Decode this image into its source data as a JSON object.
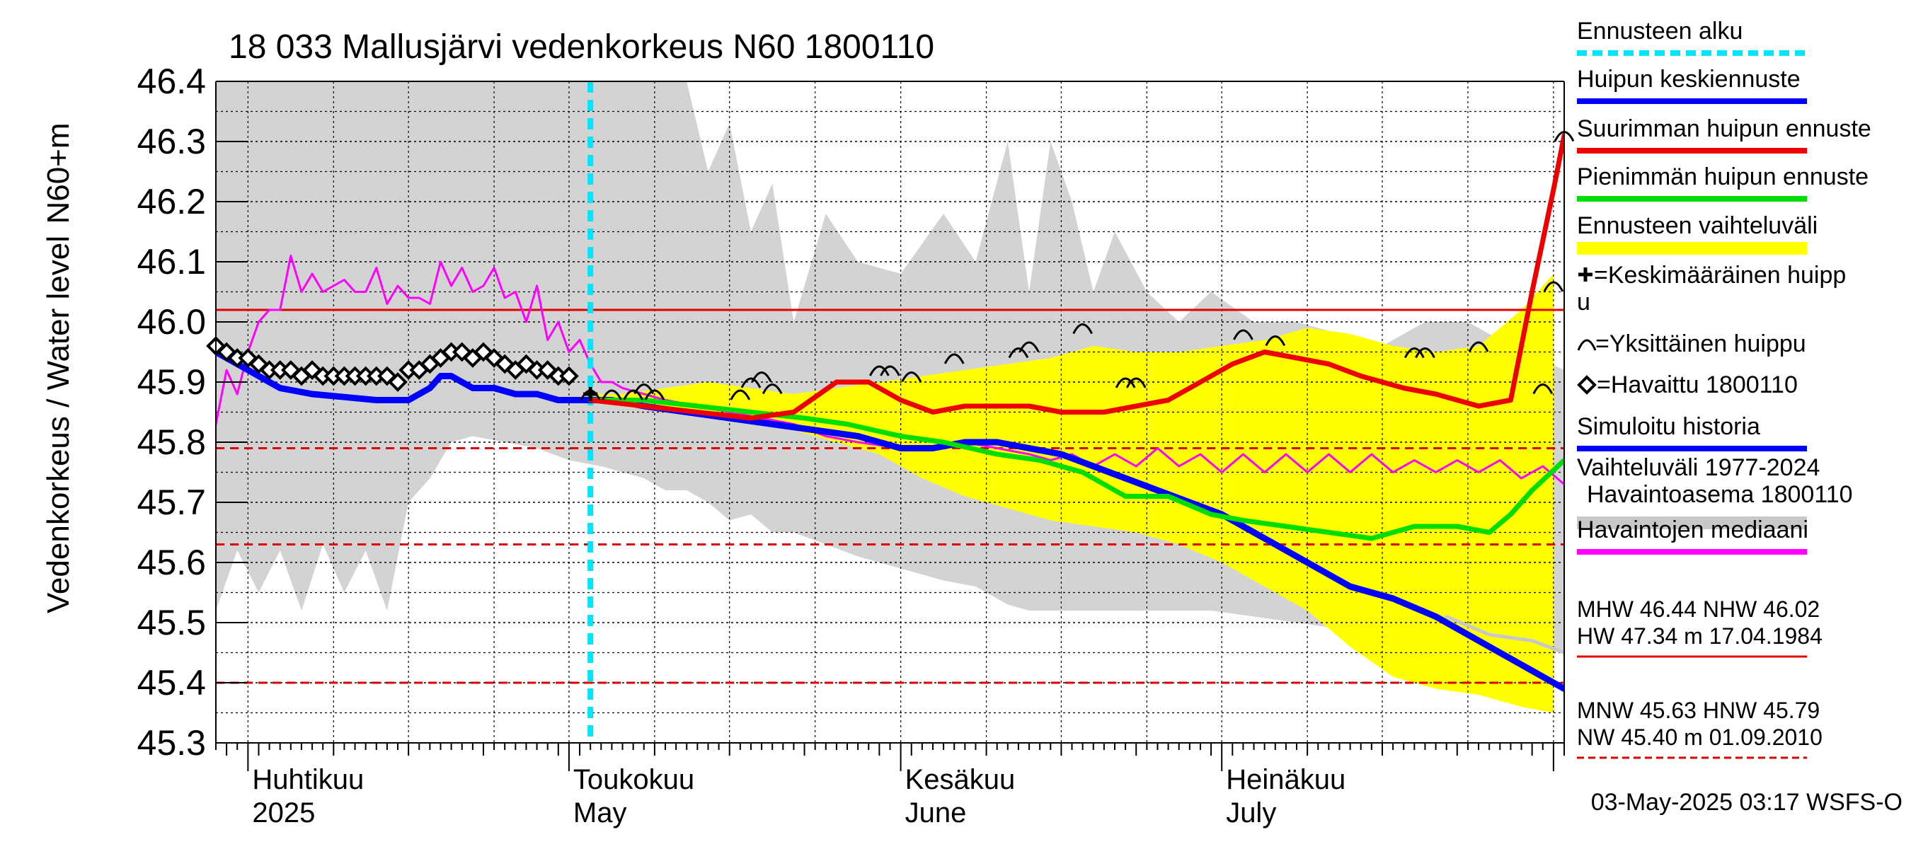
{
  "chart_data": {
    "type": "line",
    "title": "18 033 Mallusjärvi vedenkorkeus N60 1800110",
    "ylabel": "Vedenkorkeus / Water level",
    "yunit": "N60+m",
    "ylim": [
      45.3,
      46.4
    ],
    "y_ticks": [
      "46.4",
      "46.3",
      "46.2",
      "46.1",
      "46.0",
      "45.9",
      "45.8",
      "45.7",
      "45.6",
      "45.5",
      "45.4",
      "45.3"
    ],
    "x_range": [
      "2025-03-29",
      "2025-08-02"
    ],
    "month_labels": [
      {
        "fi": "Huhtikuu",
        "en": "2025",
        "date": "2025-04-01"
      },
      {
        "fi": "Toukokuu",
        "en": "May",
        "date": "2025-05-01"
      },
      {
        "fi": "Kesäkuu",
        "en": "June",
        "date": "2025-06-01"
      },
      {
        "fi": "Heinäkuu",
        "en": "July",
        "date": "2025-07-01"
      }
    ],
    "grid": true,
    "forecast_start": "2025-05-03",
    "reference_lines": [
      {
        "value": 46.02,
        "style": "solid",
        "color": "#e00000"
      },
      {
        "value": 45.79,
        "style": "dashed",
        "color": "#e00000"
      },
      {
        "value": 45.63,
        "style": "dashed",
        "color": "#e00000"
      },
      {
        "value": 45.4,
        "style": "dashed",
        "color": "#e00000"
      }
    ],
    "variation_range": {
      "name": "Vaihteluväli 1977-2024",
      "x": [
        "2025-03-29",
        "2025-03-31",
        "2025-04-02",
        "2025-04-04",
        "2025-04-06",
        "2025-04-08",
        "2025-04-10",
        "2025-04-12",
        "2025-04-14",
        "2025-04-16",
        "2025-04-18",
        "2025-04-20",
        "2025-04-22",
        "2025-04-25",
        "2025-04-28",
        "2025-05-01",
        "2025-05-04",
        "2025-05-08",
        "2025-05-10",
        "2025-05-12",
        "2025-05-14",
        "2025-05-16",
        "2025-05-18",
        "2025-05-20",
        "2025-05-22",
        "2025-05-25",
        "2025-05-28",
        "2025-06-01",
        "2025-06-05",
        "2025-06-08",
        "2025-06-11",
        "2025-06-13",
        "2025-06-15",
        "2025-06-17",
        "2025-06-19",
        "2025-06-21",
        "2025-06-24",
        "2025-06-27",
        "2025-06-30",
        "2025-07-04",
        "2025-07-08",
        "2025-07-12",
        "2025-07-16",
        "2025-07-20",
        "2025-07-24",
        "2025-07-28",
        "2025-08-02"
      ],
      "upper": [
        46.4,
        46.4,
        46.4,
        46.4,
        46.4,
        46.4,
        46.4,
        46.4,
        46.4,
        46.4,
        46.4,
        46.4,
        46.4,
        46.4,
        46.4,
        46.4,
        46.4,
        46.4,
        46.4,
        46.4,
        46.25,
        46.33,
        46.15,
        46.23,
        46.0,
        46.18,
        46.1,
        46.08,
        46.18,
        46.1,
        46.3,
        46.05,
        46.3,
        46.2,
        46.05,
        46.15,
        46.05,
        46.0,
        46.05,
        46.0,
        46.0,
        45.98,
        45.96,
        46.0,
        46.0,
        45.96,
        45.92
      ],
      "lower": [
        45.52,
        45.62,
        45.55,
        45.62,
        45.52,
        45.63,
        45.55,
        45.62,
        45.52,
        45.7,
        45.74,
        45.8,
        45.81,
        45.8,
        45.79,
        45.77,
        45.76,
        45.74,
        45.72,
        45.72,
        45.7,
        45.67,
        45.68,
        45.65,
        45.65,
        45.63,
        45.61,
        45.59,
        45.57,
        45.56,
        45.53,
        45.52,
        45.52,
        45.52,
        45.52,
        45.52,
        45.52,
        45.52,
        45.52,
        45.51,
        45.5,
        45.49,
        45.49,
        45.48,
        45.47,
        45.46,
        45.45
      ]
    },
    "forecast_range": {
      "name": "Ennusteen vaihteluväli",
      "x": [
        "2025-05-03",
        "2025-05-06",
        "2025-05-10",
        "2025-05-14",
        "2025-05-18",
        "2025-05-22",
        "2025-05-26",
        "2025-05-30",
        "2025-06-03",
        "2025-06-07",
        "2025-06-11",
        "2025-06-15",
        "2025-06-19",
        "2025-06-23",
        "2025-06-27",
        "2025-07-01",
        "2025-07-05",
        "2025-07-09",
        "2025-07-13",
        "2025-07-17",
        "2025-07-21",
        "2025-07-25",
        "2025-07-29",
        "2025-08-01"
      ],
      "upper": [
        45.88,
        45.88,
        45.89,
        45.9,
        45.89,
        45.88,
        45.89,
        45.9,
        45.91,
        45.92,
        45.93,
        45.94,
        45.96,
        45.95,
        45.95,
        45.96,
        45.97,
        45.99,
        45.98,
        45.96,
        45.95,
        45.96,
        46.02,
        46.08
      ],
      "lower": [
        45.87,
        45.86,
        45.85,
        45.84,
        45.83,
        45.82,
        45.8,
        45.78,
        45.74,
        45.71,
        45.69,
        45.67,
        45.66,
        45.65,
        45.63,
        45.6,
        45.56,
        45.52,
        45.46,
        45.41,
        45.39,
        45.38,
        45.36,
        45.35
      ]
    },
    "series": [
      {
        "name": "Havaintojen mediaani",
        "color": "#ff00ff",
        "width": 3,
        "x": [
          "2025-03-29",
          "2025-03-30",
          "2025-03-31",
          "2025-04-01",
          "2025-04-02",
          "2025-04-03",
          "2025-04-04",
          "2025-04-05",
          "2025-04-06",
          "2025-04-07",
          "2025-04-08",
          "2025-04-09",
          "2025-04-10",
          "2025-04-11",
          "2025-04-12",
          "2025-04-13",
          "2025-04-14",
          "2025-04-15",
          "2025-04-16",
          "2025-04-17",
          "2025-04-18",
          "2025-04-19",
          "2025-04-20",
          "2025-04-21",
          "2025-04-22",
          "2025-04-23",
          "2025-04-24",
          "2025-04-25",
          "2025-04-26",
          "2025-04-27",
          "2025-04-28",
          "2025-04-29",
          "2025-04-30",
          "2025-05-01",
          "2025-05-02",
          "2025-05-03",
          "2025-05-04",
          "2025-05-05",
          "2025-05-06",
          "2025-05-08",
          "2025-05-10",
          "2025-05-13",
          "2025-05-16",
          "2025-05-19",
          "2025-05-22",
          "2025-05-25",
          "2025-05-28",
          "2025-06-01",
          "2025-06-04",
          "2025-06-07",
          "2025-06-10",
          "2025-06-13",
          "2025-06-15",
          "2025-06-17",
          "2025-06-19",
          "2025-06-21",
          "2025-06-23",
          "2025-06-25",
          "2025-06-27",
          "2025-06-29",
          "2025-07-01",
          "2025-07-03",
          "2025-07-05",
          "2025-07-07",
          "2025-07-09",
          "2025-07-11",
          "2025-07-13",
          "2025-07-15",
          "2025-07-17",
          "2025-07-19",
          "2025-07-21",
          "2025-07-23",
          "2025-07-25",
          "2025-07-27",
          "2025-07-29",
          "2025-07-31",
          "2025-08-02"
        ],
        "y": [
          45.83,
          45.92,
          45.88,
          45.95,
          46.0,
          46.02,
          46.02,
          46.11,
          46.05,
          46.08,
          46.05,
          46.06,
          46.07,
          46.05,
          46.05,
          46.09,
          46.03,
          46.06,
          46.04,
          46.04,
          46.03,
          46.1,
          46.06,
          46.09,
          46.05,
          46.06,
          46.09,
          46.04,
          46.05,
          46.0,
          46.06,
          45.97,
          46.0,
          45.95,
          45.97,
          45.93,
          45.9,
          45.9,
          45.89,
          45.88,
          45.87,
          45.86,
          45.85,
          45.84,
          45.83,
          45.81,
          45.8,
          45.79,
          45.79,
          45.8,
          45.79,
          45.78,
          45.77,
          45.78,
          45.76,
          45.78,
          45.76,
          45.79,
          45.76,
          45.78,
          45.75,
          45.78,
          45.75,
          45.78,
          45.75,
          45.78,
          45.75,
          45.78,
          45.75,
          45.77,
          45.75,
          45.77,
          45.75,
          45.77,
          45.74,
          45.76,
          45.73
        ]
      },
      {
        "name": "Ennusteen alku",
        "color": "#00e5ff",
        "width": 8
      },
      {
        "name": "Simuloitu historia",
        "color": "#0000ff",
        "width": 9,
        "x": [
          "2025-03-29",
          "2025-04-01",
          "2025-04-04",
          "2025-04-07",
          "2025-04-10",
          "2025-04-13",
          "2025-04-16",
          "2025-04-18",
          "2025-04-19",
          "2025-04-20",
          "2025-04-21",
          "2025-04-22",
          "2025-04-24",
          "2025-04-26",
          "2025-04-28",
          "2025-04-30",
          "2025-05-02",
          "2025-05-05",
          "2025-05-08",
          "2025-05-12",
          "2025-05-16",
          "2025-05-20",
          "2025-05-24",
          "2025-05-28",
          "2025-06-01",
          "2025-06-04",
          "2025-06-07",
          "2025-06-10",
          "2025-06-13",
          "2025-06-16",
          "2025-06-19",
          "2025-06-22",
          "2025-06-25",
          "2025-06-28",
          "2025-07-01",
          "2025-07-05",
          "2025-07-09",
          "2025-07-13",
          "2025-07-17",
          "2025-07-21",
          "2025-07-25",
          "2025-07-29",
          "2025-08-02"
        ],
        "y": [
          45.95,
          45.92,
          45.89,
          45.88,
          45.875,
          45.87,
          45.87,
          45.89,
          45.91,
          45.91,
          45.9,
          45.89,
          45.89,
          45.88,
          45.88,
          45.87,
          45.87,
          45.87,
          45.86,
          45.85,
          45.84,
          45.83,
          45.82,
          45.81,
          45.79,
          45.79,
          45.8,
          45.8,
          45.79,
          45.78,
          45.76,
          45.74,
          45.72,
          45.7,
          45.68,
          45.64,
          45.6,
          45.56,
          45.54,
          45.51,
          45.47,
          45.43,
          45.39
        ]
      },
      {
        "name": "Vaihteluväli gray median",
        "color": "#c8c8c8",
        "width": 5,
        "x": [
          "2025-07-22",
          "2025-07-26",
          "2025-07-30",
          "2025-08-02"
        ],
        "y": [
          45.51,
          45.48,
          45.47,
          45.45
        ]
      },
      {
        "name": "Pienimmän huipun ennuste",
        "color": "#00dd00",
        "width": 7,
        "x": [
          "2025-05-03",
          "2025-05-08",
          "2025-05-13",
          "2025-05-18",
          "2025-05-23",
          "2025-05-27",
          "2025-06-01",
          "2025-06-05",
          "2025-06-10",
          "2025-06-14",
          "2025-06-18",
          "2025-06-22",
          "2025-06-26",
          "2025-06-30",
          "2025-07-03",
          "2025-07-07",
          "2025-07-11",
          "2025-07-15",
          "2025-07-19",
          "2025-07-23",
          "2025-07-26",
          "2025-07-28",
          "2025-07-30",
          "2025-08-02"
        ],
        "y": [
          45.87,
          45.87,
          45.86,
          45.85,
          45.84,
          45.83,
          45.81,
          45.8,
          45.78,
          45.77,
          45.75,
          45.71,
          45.71,
          45.68,
          45.67,
          45.66,
          45.65,
          45.64,
          45.66,
          45.66,
          45.65,
          45.68,
          45.72,
          45.77
        ]
      },
      {
        "name": "Suurimman huipun ennuste",
        "color": "#ee0000",
        "width": 7,
        "x": [
          "2025-05-03",
          "2025-05-08",
          "2025-05-13",
          "2025-05-18",
          "2025-05-22",
          "2025-05-26",
          "2025-05-29",
          "2025-06-01",
          "2025-06-04",
          "2025-06-07",
          "2025-06-10",
          "2025-06-13",
          "2025-06-16",
          "2025-06-20",
          "2025-06-23",
          "2025-06-26",
          "2025-06-29",
          "2025-07-02",
          "2025-07-05",
          "2025-07-08",
          "2025-07-11",
          "2025-07-14",
          "2025-07-18",
          "2025-07-21",
          "2025-07-25",
          "2025-07-28",
          "2025-07-30",
          "2025-08-01",
          "2025-08-02"
        ],
        "y": [
          45.87,
          45.86,
          45.85,
          45.84,
          45.85,
          45.9,
          45.9,
          45.87,
          45.85,
          45.86,
          45.86,
          45.86,
          45.85,
          45.85,
          45.86,
          45.87,
          45.9,
          45.93,
          45.95,
          45.94,
          45.93,
          45.91,
          45.89,
          45.88,
          45.86,
          45.87,
          46.05,
          46.22,
          46.31
        ]
      }
    ],
    "observed": {
      "name": "Havaittu 1800110",
      "x": [
        "2025-03-29",
        "2025-03-30",
        "2025-03-31",
        "2025-04-01",
        "2025-04-02",
        "2025-04-03",
        "2025-04-04",
        "2025-04-05",
        "2025-04-06",
        "2025-04-07",
        "2025-04-08",
        "2025-04-09",
        "2025-04-10",
        "2025-04-11",
        "2025-04-12",
        "2025-04-13",
        "2025-04-14",
        "2025-04-15",
        "2025-04-16",
        "2025-04-17",
        "2025-04-18",
        "2025-04-19",
        "2025-04-20",
        "2025-04-21",
        "2025-04-22",
        "2025-04-23",
        "2025-04-24",
        "2025-04-25",
        "2025-04-26",
        "2025-04-27",
        "2025-04-28",
        "2025-04-29",
        "2025-04-30",
        "2025-05-01"
      ],
      "y": [
        45.96,
        45.95,
        45.94,
        45.94,
        45.93,
        45.92,
        45.92,
        45.92,
        45.91,
        45.92,
        45.91,
        45.91,
        45.91,
        45.91,
        45.91,
        45.91,
        45.91,
        45.9,
        45.92,
        45.92,
        45.93,
        45.94,
        45.95,
        45.95,
        45.94,
        45.95,
        45.94,
        45.93,
        45.92,
        45.93,
        45.92,
        45.92,
        45.91,
        45.91
      ]
    },
    "single_peaks": {
      "name": "Yksittäinen huippu",
      "x": [
        "2025-05-03",
        "2025-05-05",
        "2025-05-07",
        "2025-05-08",
        "2025-05-09",
        "2025-05-17",
        "2025-05-18",
        "2025-05-19",
        "2025-05-20",
        "2025-05-30",
        "2025-05-31",
        "2025-06-02",
        "2025-06-06",
        "2025-06-12",
        "2025-06-13",
        "2025-06-18",
        "2025-06-22",
        "2025-06-23",
        "2025-07-03",
        "2025-07-06",
        "2025-07-19",
        "2025-07-20",
        "2025-07-25",
        "2025-07-31",
        "2025-08-01",
        "2025-08-02"
      ],
      "y": [
        45.88,
        45.88,
        45.88,
        45.89,
        45.88,
        45.88,
        45.9,
        45.91,
        45.89,
        45.92,
        45.92,
        45.91,
        45.94,
        45.95,
        45.96,
        45.99,
        45.9,
        45.9,
        45.98,
        45.97,
        45.95,
        45.95,
        45.96,
        45.89,
        46.06,
        46.31
      ]
    },
    "mean_peak_marker": {
      "x": "2025-05-03",
      "y": 45.88
    },
    "legend": [
      {
        "label": "Ennusteen alku",
        "color": "#00e5ff",
        "kind": "dashed"
      },
      {
        "label": "Huipun keskiennuste",
        "color": "#0000ff",
        "kind": "line"
      },
      {
        "label": "Suurimman huipun ennuste",
        "color": "#ee0000",
        "kind": "line"
      },
      {
        "label": "Pienimmän huipun ennuste",
        "color": "#00dd00",
        "kind": "line"
      },
      {
        "label": "Ennusteen vaihteluväli",
        "color": "#ffff00",
        "kind": "band"
      },
      {
        "label": "+=Keskimääräinen huipp u",
        "line1": "=Keskimääräinen huipp",
        "line2": "u",
        "kind": "plus"
      },
      {
        "label": "=Yksittäinen huippu",
        "kind": "arc"
      },
      {
        "label": "=Havaittu 1800110",
        "kind": "diamond"
      },
      {
        "label": "Simuloitu historia",
        "color": "#0000ff",
        "kind": "line"
      },
      {
        "label": "Vaihteluväli 1977-2024",
        "line2": "Havaintoasema 1800110",
        "color": "#c8c8c8",
        "kind": "band"
      },
      {
        "label": "Havaintojen mediaani",
        "color": "#ff00ff",
        "kind": "line"
      }
    ],
    "stats": [
      {
        "line1": "MHW  46.44 NHW  46.02",
        "line2": "HW  47.34 m 17.04.1984",
        "style": "solid"
      },
      {
        "line1": "MNW  45.63 HNW  45.79",
        "line2": "NW  45.40 m 01.09.2010",
        "style": "dashed"
      }
    ],
    "footer": "03-May-2025 03:17 WSFS-O"
  }
}
